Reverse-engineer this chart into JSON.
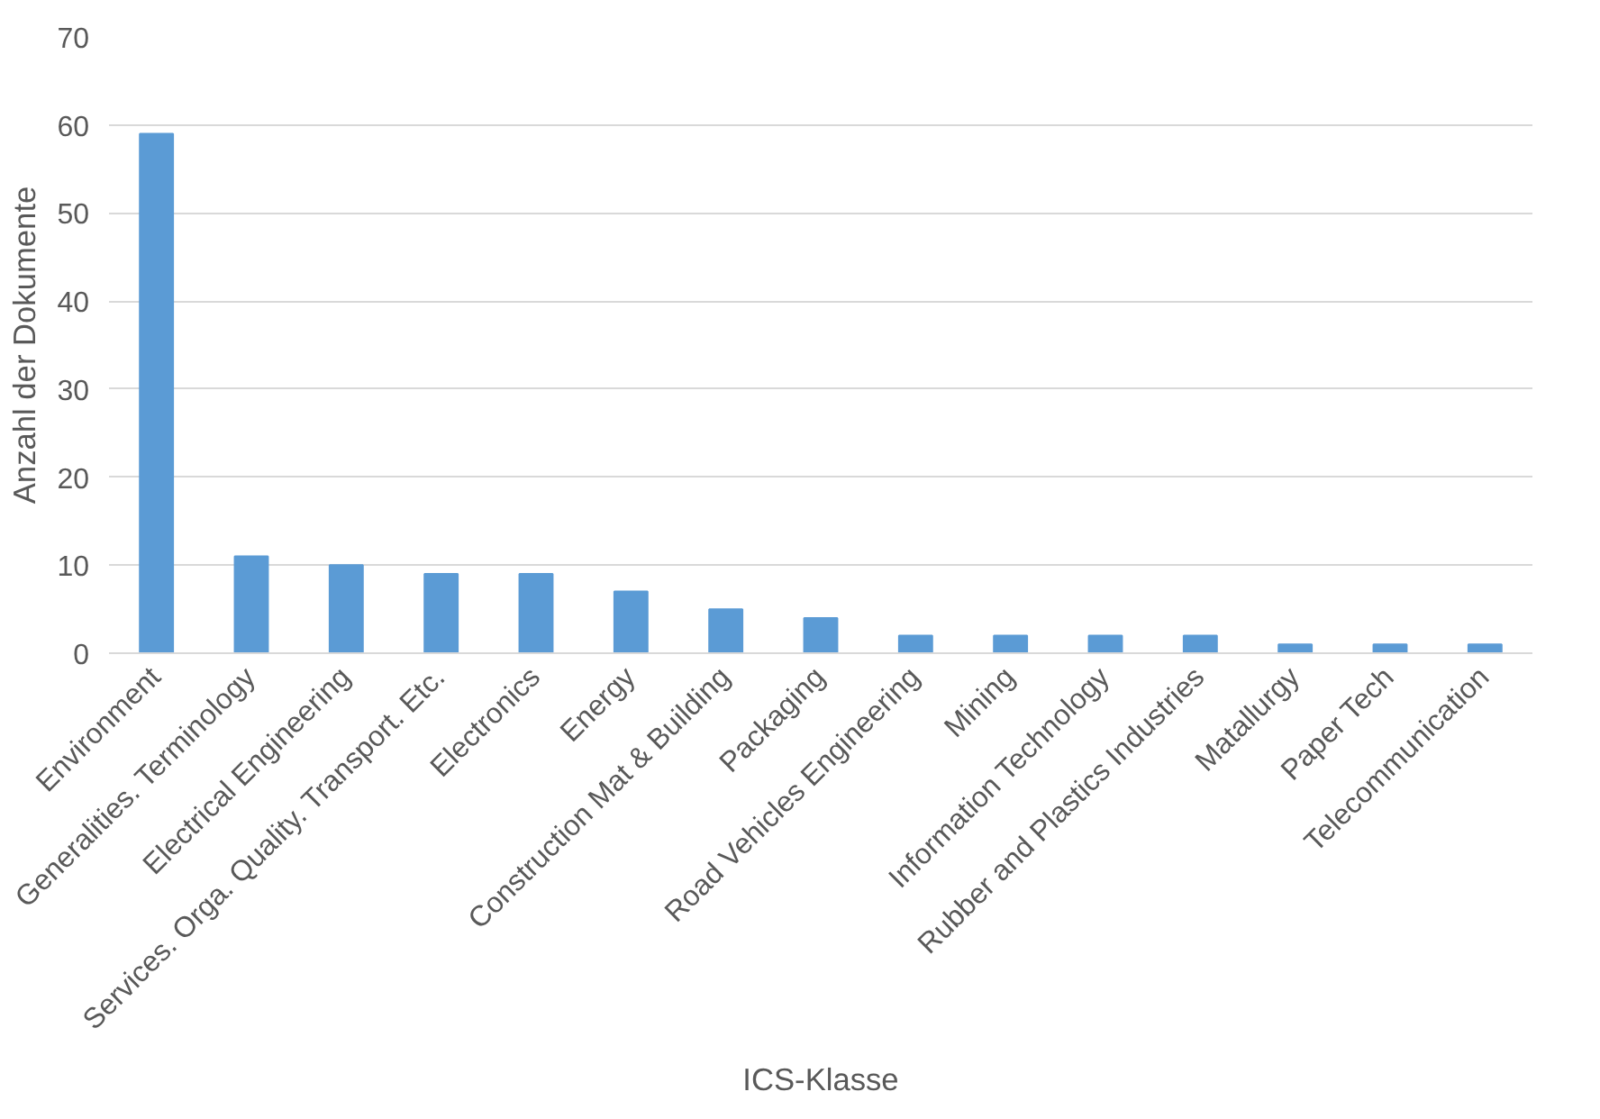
{
  "chart_data": {
    "type": "bar",
    "xlabel": "ICS-Klasse",
    "ylabel": "Anzahl der Dokumente",
    "categories": [
      "Environment",
      "Generalities. Terminology",
      "Electrical Engineering",
      "Services. Orga. Quality. Transport. Etc.",
      "Electronics",
      "Energy",
      "Construction Mat & Building",
      "Packaging",
      "Road Vehicles Engineering",
      "Mining",
      "Information Technology",
      "Rubber and Plastics Industries",
      "Matallurgy",
      "Paper Tech",
      "Telecommunication"
    ],
    "values": [
      59,
      11,
      10,
      9,
      9,
      7,
      5,
      4,
      2,
      2,
      2,
      2,
      1,
      1,
      1
    ],
    "color": "#5b9bd5",
    "ylim": [
      0,
      70
    ],
    "yticks": [
      0,
      10,
      20,
      30,
      40,
      50,
      60,
      70
    ],
    "grid": "y"
  }
}
